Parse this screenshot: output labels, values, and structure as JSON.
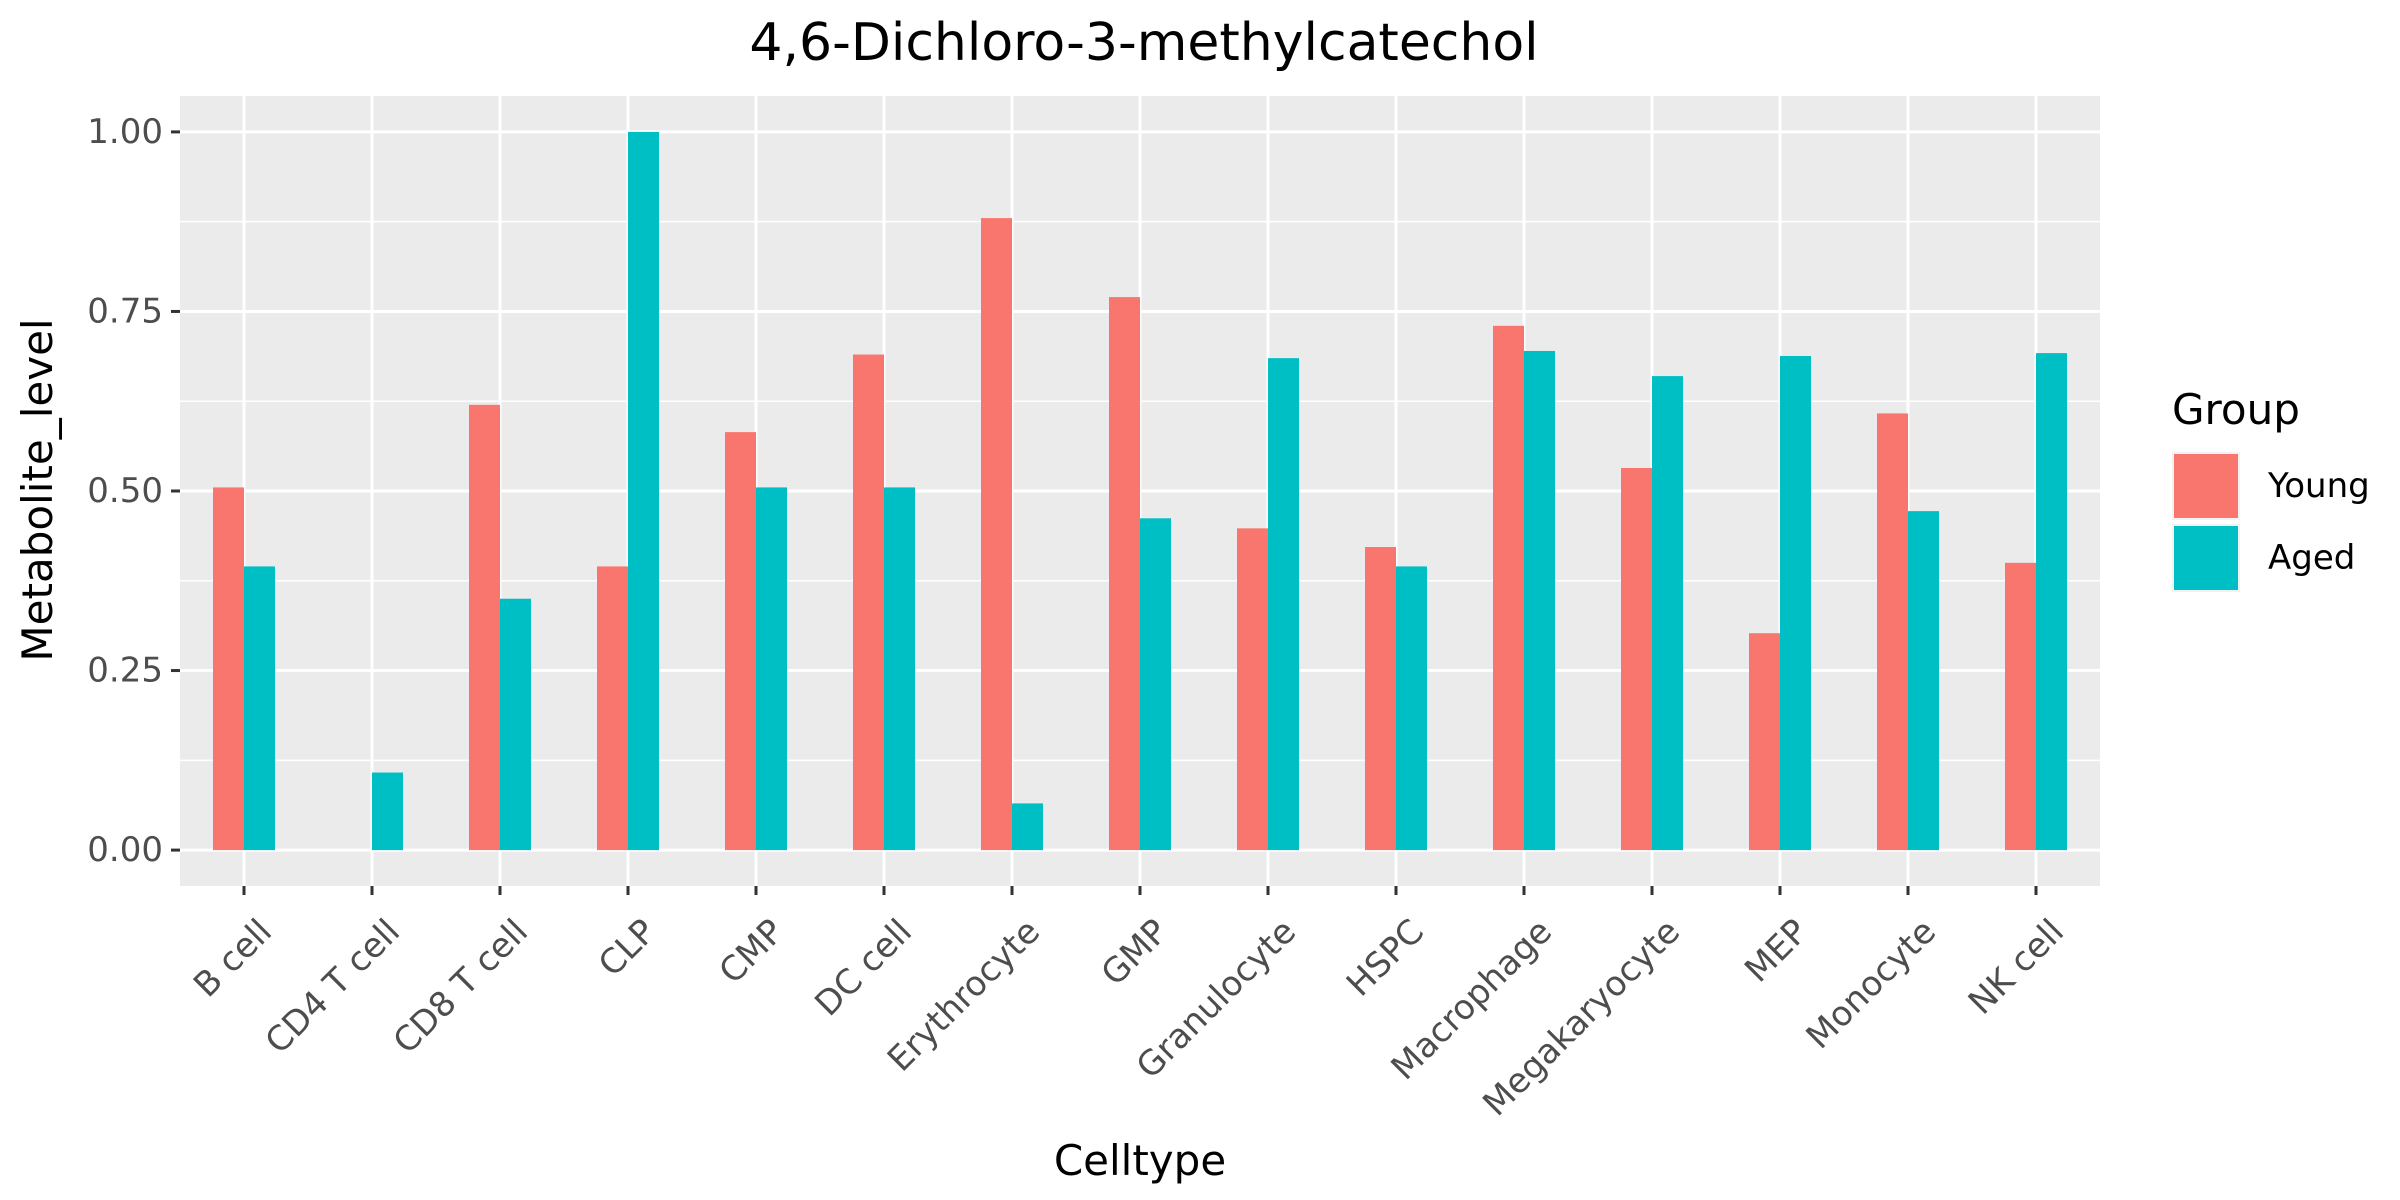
{
  "chart_data": {
    "type": "bar",
    "title": "4,6-Dichloro-3-methylcatechol",
    "xlabel": "Celltype",
    "ylabel": "Metabolite_level",
    "categories": [
      "B cell",
      "CD4 T cell",
      "CD8 T cell",
      "CLP",
      "CMP",
      "DC cell",
      "Erythrocyte",
      "GMP",
      "Granulocyte",
      "HSPC",
      "Macrophage",
      "Megakaryocyte",
      "MEP",
      "Monocyte",
      "NK cell"
    ],
    "series": [
      {
        "name": "Young",
        "color": "#F8766D",
        "values": [
          0.505,
          0.0,
          0.62,
          0.395,
          0.582,
          0.69,
          0.88,
          0.77,
          0.448,
          0.422,
          0.73,
          0.532,
          0.302,
          0.608,
          0.4
        ]
      },
      {
        "name": "Aged",
        "color": "#00BFC4",
        "values": [
          0.395,
          0.108,
          0.35,
          1.0,
          0.505,
          0.505,
          0.065,
          0.462,
          0.685,
          0.395,
          0.695,
          0.66,
          0.688,
          0.472,
          0.692
        ]
      }
    ],
    "ylim": [
      -0.05,
      1.05
    ],
    "yticks": [
      0,
      0.25,
      0.5,
      0.75,
      1.0
    ],
    "ytick_labels": [
      "0.00",
      "0.25",
      "0.50",
      "0.75",
      "1.00"
    ],
    "grid": true,
    "legend": {
      "title": "Group",
      "position": "right"
    },
    "panel_background": "#EBEBEB"
  }
}
